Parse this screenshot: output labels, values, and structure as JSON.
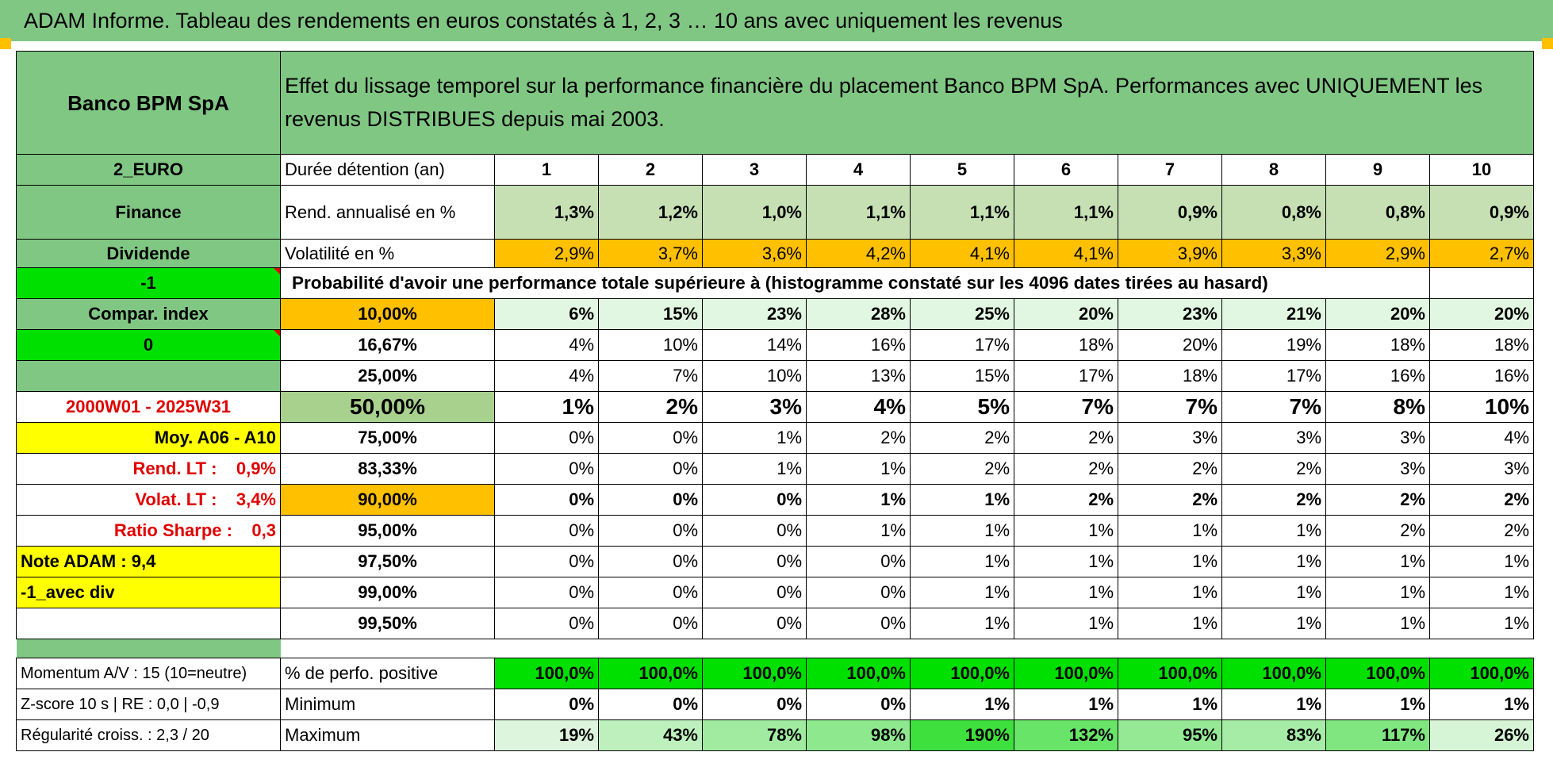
{
  "title": "ADAM Informe. Tableau des rendements en euros constatés à 1, 2, 3 … 10 ans avec uniquement les revenus",
  "side": {
    "name": "Banco BPM SpA",
    "currency": "2_EURO",
    "sector": "Finance",
    "mode": "Dividende",
    "flag1": "-1",
    "compar": "Compar. index",
    "flag2": "0",
    "period": "2000W01 - 2025W31",
    "moy": "Moy. A06 - A10",
    "rend_lt": "Rend. LT :    0,9%",
    "volat_lt": "Volat. LT :    3,4%",
    "sharpe": "Ratio Sharpe :    0,3",
    "note": "Note ADAM : 9,4",
    "div": "-1_avec div",
    "momentum": "Momentum A/V : 15 (10=neutre)",
    "zscore": "Z-score 10 s | RE : 0,0 | -0,9",
    "regularite": "Régularité croiss. : 2,3 / 20"
  },
  "header": {
    "description": "Effet du lissage temporel sur la performance financière du placement Banco BPM SpA. Performances avec UNIQUEMENT les revenus DISTRIBUES depuis mai 2003.",
    "duree_label": "Durée détention (an)",
    "years": [
      "1",
      "2",
      "3",
      "4",
      "5",
      "6",
      "7",
      "8",
      "9",
      "10"
    ]
  },
  "rend": {
    "label": "Rend. annualisé en %",
    "values": [
      "1,3%",
      "1,2%",
      "1,0%",
      "1,1%",
      "1,1%",
      "1,1%",
      "0,9%",
      "0,8%",
      "0,8%",
      "0,9%"
    ]
  },
  "vol": {
    "label": "Volatilité en %",
    "values": [
      "2,9%",
      "3,7%",
      "3,6%",
      "4,2%",
      "4,1%",
      "4,1%",
      "3,9%",
      "3,3%",
      "2,9%",
      "2,7%"
    ]
  },
  "prob_title": "Probabilité d'avoir une performance totale supérieure à (histogramme constaté sur les 4096 dates tirées au hasard)",
  "prob_rows": [
    {
      "threshold": "10,00%",
      "values": [
        "6%",
        "15%",
        "23%",
        "28%",
        "25%",
        "20%",
        "23%",
        "21%",
        "20%",
        "20%"
      ]
    },
    {
      "threshold": "16,67%",
      "values": [
        "4%",
        "10%",
        "14%",
        "16%",
        "17%",
        "18%",
        "20%",
        "19%",
        "18%",
        "18%"
      ]
    },
    {
      "threshold": "25,00%",
      "values": [
        "4%",
        "7%",
        "10%",
        "13%",
        "15%",
        "17%",
        "18%",
        "17%",
        "16%",
        "16%"
      ]
    },
    {
      "threshold": "50,00%",
      "values": [
        "1%",
        "2%",
        "3%",
        "4%",
        "5%",
        "7%",
        "7%",
        "7%",
        "8%",
        "10%"
      ]
    },
    {
      "threshold": "75,00%",
      "values": [
        "0%",
        "0%",
        "1%",
        "2%",
        "2%",
        "2%",
        "3%",
        "3%",
        "3%",
        "4%"
      ]
    },
    {
      "threshold": "83,33%",
      "values": [
        "0%",
        "0%",
        "1%",
        "1%",
        "2%",
        "2%",
        "2%",
        "2%",
        "3%",
        "3%"
      ]
    },
    {
      "threshold": "90,00%",
      "values": [
        "0%",
        "0%",
        "0%",
        "1%",
        "1%",
        "2%",
        "2%",
        "2%",
        "2%",
        "2%"
      ]
    },
    {
      "threshold": "95,00%",
      "values": [
        "0%",
        "0%",
        "0%",
        "1%",
        "1%",
        "1%",
        "1%",
        "1%",
        "2%",
        "2%"
      ]
    },
    {
      "threshold": "97,50%",
      "values": [
        "0%",
        "0%",
        "0%",
        "0%",
        "1%",
        "1%",
        "1%",
        "1%",
        "1%",
        "1%"
      ]
    },
    {
      "threshold": "99,00%",
      "values": [
        "0%",
        "0%",
        "0%",
        "0%",
        "1%",
        "1%",
        "1%",
        "1%",
        "1%",
        "1%"
      ]
    },
    {
      "threshold": "99,50%",
      "values": [
        "0%",
        "0%",
        "0%",
        "0%",
        "1%",
        "1%",
        "1%",
        "1%",
        "1%",
        "1%"
      ]
    }
  ],
  "pos": {
    "label": "% de perfo. positive",
    "values": [
      "100,0%",
      "100,0%",
      "100,0%",
      "100,0%",
      "100,0%",
      "100,0%",
      "100,0%",
      "100,0%",
      "100,0%",
      "100,0%"
    ]
  },
  "min": {
    "label": "Minimum",
    "values": [
      "0%",
      "0%",
      "0%",
      "0%",
      "1%",
      "1%",
      "1%",
      "1%",
      "1%",
      "1%"
    ]
  },
  "max": {
    "label": "Maximum",
    "values": [
      "19%",
      "43%",
      "78%",
      "98%",
      "190%",
      "132%",
      "95%",
      "83%",
      "117%",
      "26%"
    ]
  },
  "colors": {
    "header_green": "#81c784",
    "light_green": "#c6e0b4",
    "bright_green": "#00e000",
    "orange": "#ffc000",
    "yellow": "#ffff00",
    "red_text": "#e00000"
  }
}
